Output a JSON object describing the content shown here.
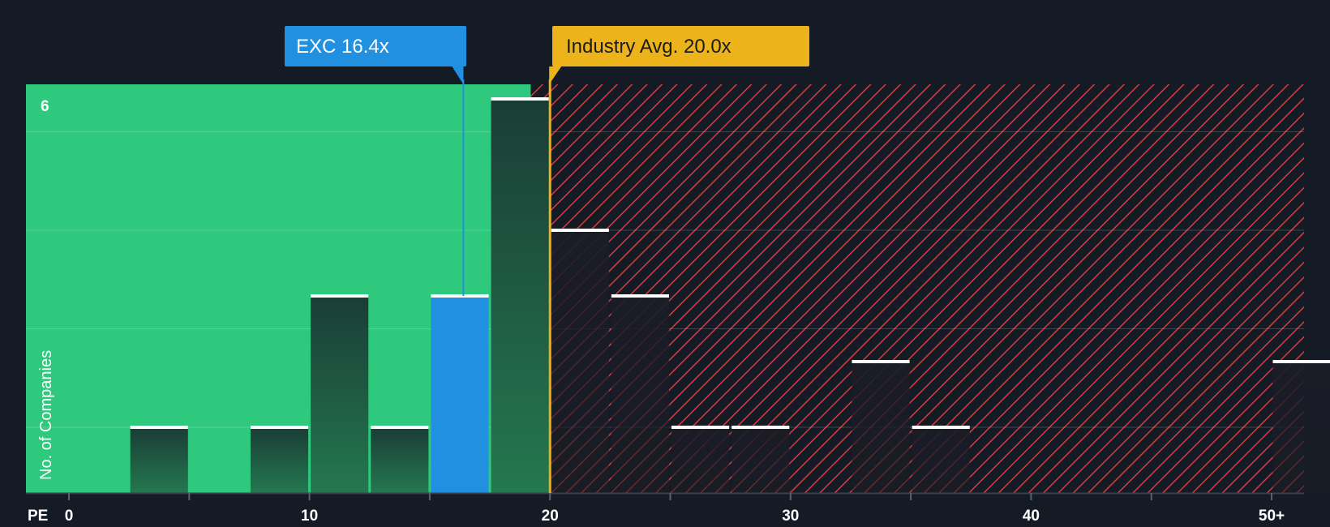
{
  "chart_data": {
    "type": "bar",
    "title": "",
    "xlabel": "PE",
    "ylabel": "No. of Companies",
    "x_ticks": [
      "0",
      "10",
      "20",
      "30",
      "40",
      "50+"
    ],
    "x_range": [
      0,
      51.5
    ],
    "ylim": [
      0,
      6
    ],
    "y_tick_labels": [
      "6"
    ],
    "bin_width": 2.5,
    "bins": [
      {
        "start": 2.5,
        "count": 1
      },
      {
        "start": 7.5,
        "count": 1
      },
      {
        "start": 10.0,
        "count": 3
      },
      {
        "start": 12.5,
        "count": 1
      },
      {
        "start": 15.0,
        "count": 3,
        "highlight": true
      },
      {
        "start": 17.5,
        "count": 6
      },
      {
        "start": 20.0,
        "count": 4
      },
      {
        "start": 22.5,
        "count": 3
      },
      {
        "start": 25.0,
        "count": 1
      },
      {
        "start": 27.5,
        "count": 1
      },
      {
        "start": 32.5,
        "count": 2
      },
      {
        "start": 35.0,
        "count": 1
      },
      {
        "start": 50.0,
        "count": 2
      }
    ],
    "fair_value_boundary": 19.2,
    "company": {
      "ticker": "EXC",
      "label": "EXC 16.4x",
      "value": 16.4
    },
    "industry": {
      "label": "Industry Avg. 20.0x",
      "value": 20.0
    },
    "colors": {
      "background": "#151b24",
      "green_region": "#2ec97d",
      "red_hatch": "#d93a3f",
      "company": "#2290e0",
      "industry": "#ecb31a",
      "bar_dark": "#1a4d3c",
      "bar_red_zone": "#1a1c26"
    }
  }
}
